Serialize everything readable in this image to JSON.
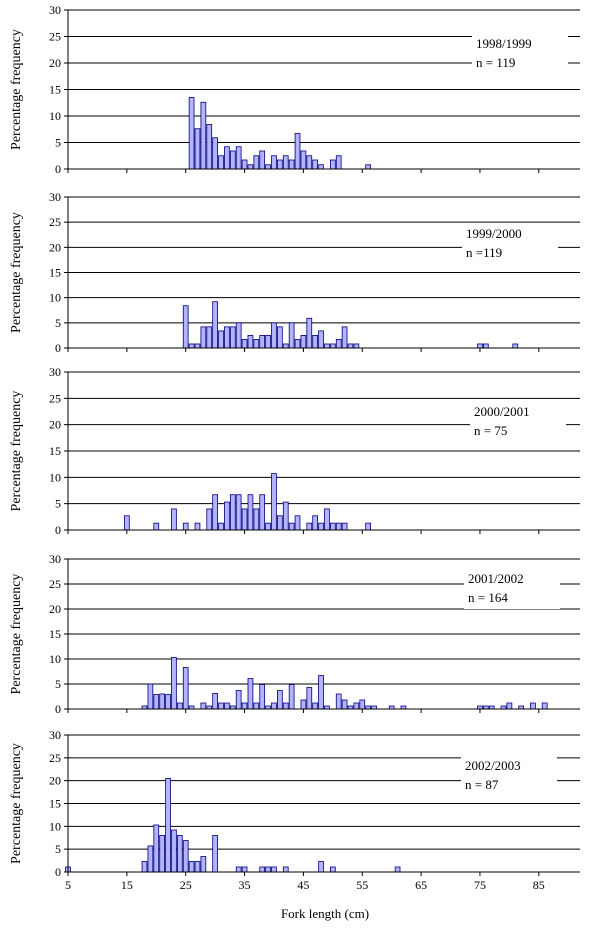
{
  "figure": {
    "xlabel": "Fork length (cm)",
    "bar_fill": "#b3b3ff",
    "bar_stroke": "#00007a"
  },
  "chart_data": [
    {
      "type": "bar",
      "season": "1998/1999",
      "n_label": "n = 119",
      "ylabel": "Percentage frequency",
      "ylim": [
        0,
        30
      ],
      "yticks": [
        0,
        5,
        10,
        15,
        20,
        25,
        30
      ],
      "xlim": [
        5,
        92
      ],
      "xticks": [
        5,
        15,
        25,
        35,
        45,
        55,
        65,
        75,
        85
      ],
      "show_xtick_labels": false,
      "grid": "horizontal",
      "x": [
        26,
        27,
        28,
        29,
        30,
        31,
        32,
        33,
        34,
        35,
        36,
        37,
        38,
        39,
        40,
        41,
        42,
        43,
        44,
        45,
        46,
        47,
        48,
        50,
        51,
        56
      ],
      "values": [
        13.5,
        7.6,
        12.6,
        8.4,
        5.9,
        2.5,
        4.2,
        3.4,
        4.2,
        1.7,
        0.8,
        2.5,
        3.4,
        0.8,
        2.5,
        1.7,
        2.5,
        1.7,
        6.7,
        3.4,
        2.5,
        1.7,
        0.8,
        1.7,
        2.5,
        0.8
      ]
    },
    {
      "type": "bar",
      "season": "1999/2000",
      "n_label": "n =119",
      "ylabel": "Percentage frequency",
      "ylim": [
        0,
        30
      ],
      "yticks": [
        0,
        5,
        10,
        15,
        20,
        25,
        30
      ],
      "xlim": [
        5,
        92
      ],
      "xticks": [
        5,
        15,
        25,
        35,
        45,
        55,
        65,
        75,
        85
      ],
      "show_xtick_labels": false,
      "grid": "horizontal",
      "x": [
        25,
        26,
        27,
        28,
        29,
        30,
        31,
        32,
        33,
        34,
        35,
        36,
        37,
        38,
        39,
        40,
        41,
        42,
        43,
        44,
        45,
        46,
        47,
        48,
        49,
        50,
        51,
        52,
        53,
        54,
        75,
        76,
        81
      ],
      "values": [
        8.4,
        0.8,
        0.8,
        4.2,
        4.2,
        9.2,
        3.4,
        4.2,
        4.2,
        5.0,
        1.7,
        2.5,
        1.7,
        2.5,
        2.5,
        5.0,
        4.2,
        0.8,
        5.0,
        1.7,
        2.5,
        5.9,
        2.5,
        3.4,
        0.8,
        0.8,
        1.7,
        4.2,
        0.8,
        0.8,
        0.8,
        0.8,
        0.8
      ]
    },
    {
      "type": "bar",
      "season": "2000/2001",
      "n_label": "n = 75",
      "ylabel": "Percentage frequency",
      "ylim": [
        0,
        30
      ],
      "yticks": [
        0,
        5,
        10,
        15,
        20,
        25,
        30
      ],
      "xlim": [
        5,
        92
      ],
      "xticks": [
        5,
        15,
        25,
        35,
        45,
        55,
        65,
        75,
        85
      ],
      "show_xtick_labels": false,
      "grid": "horizontal",
      "x": [
        15,
        20,
        23,
        25,
        27,
        29,
        30,
        31,
        32,
        33,
        34,
        35,
        36,
        37,
        38,
        39,
        40,
        41,
        42,
        43,
        44,
        46,
        47,
        48,
        49,
        50,
        51,
        52,
        56
      ],
      "values": [
        2.7,
        1.3,
        4.0,
        1.3,
        1.3,
        4.0,
        6.7,
        1.3,
        5.3,
        6.7,
        6.7,
        4.0,
        6.7,
        4.0,
        6.7,
        1.3,
        10.7,
        2.7,
        5.3,
        1.3,
        2.7,
        1.3,
        2.7,
        1.3,
        4.0,
        1.3,
        1.3,
        1.3,
        1.3
      ]
    },
    {
      "type": "bar",
      "season": "2001/2002",
      "n_label": "n = 164",
      "ylabel": "Percentage frequency",
      "ylim": [
        0,
        30
      ],
      "yticks": [
        0,
        5,
        10,
        15,
        20,
        25,
        30
      ],
      "xlim": [
        5,
        92
      ],
      "xticks": [
        5,
        15,
        25,
        35,
        45,
        55,
        65,
        75,
        85
      ],
      "show_xtick_labels": false,
      "grid": "horizontal",
      "x": [
        18,
        19,
        20,
        21,
        22,
        23,
        24,
        25,
        26,
        28,
        29,
        30,
        31,
        32,
        33,
        34,
        35,
        36,
        37,
        38,
        39,
        40,
        41,
        42,
        43,
        45,
        46,
        47,
        48,
        49,
        51,
        52,
        53,
        54,
        55,
        56,
        57,
        60,
        62,
        75,
        76,
        77,
        79,
        80,
        82,
        84,
        86
      ],
      "values": [
        0.6,
        5.0,
        2.9,
        3.0,
        2.9,
        10.3,
        1.2,
        8.3,
        0.6,
        1.2,
        0.6,
        3.1,
        1.2,
        1.2,
        0.6,
        3.7,
        1.2,
        6.1,
        1.2,
        4.9,
        0.6,
        1.2,
        3.7,
        1.2,
        4.9,
        1.8,
        4.3,
        1.2,
        6.7,
        0.6,
        3.0,
        1.8,
        0.6,
        1.2,
        1.8,
        0.6,
        0.6,
        0.6,
        0.6,
        0.6,
        0.6,
        0.6,
        0.6,
        1.2,
        0.6,
        1.2,
        1.2
      ]
    },
    {
      "type": "bar",
      "season": "2002/2003",
      "n_label": "n = 87",
      "ylabel": "Percentage frequency",
      "ylim": [
        0,
        30
      ],
      "yticks": [
        0,
        5,
        10,
        15,
        20,
        25,
        30
      ],
      "xlim": [
        5,
        92
      ],
      "xticks": [
        5,
        15,
        25,
        35,
        45,
        55,
        65,
        75,
        85
      ],
      "show_xtick_labels": true,
      "grid": "horizontal",
      "x": [
        5,
        18,
        19,
        20,
        21,
        22,
        23,
        24,
        25,
        26,
        27,
        28,
        30,
        34,
        35,
        38,
        39,
        40,
        42,
        48,
        50,
        61
      ],
      "values": [
        1.1,
        2.3,
        5.7,
        10.3,
        8.0,
        20.5,
        9.2,
        8.0,
        6.9,
        2.3,
        2.3,
        3.4,
        8.0,
        1.1,
        1.1,
        1.1,
        1.1,
        1.1,
        1.1,
        2.3,
        1.1,
        1.1
      ]
    }
  ]
}
